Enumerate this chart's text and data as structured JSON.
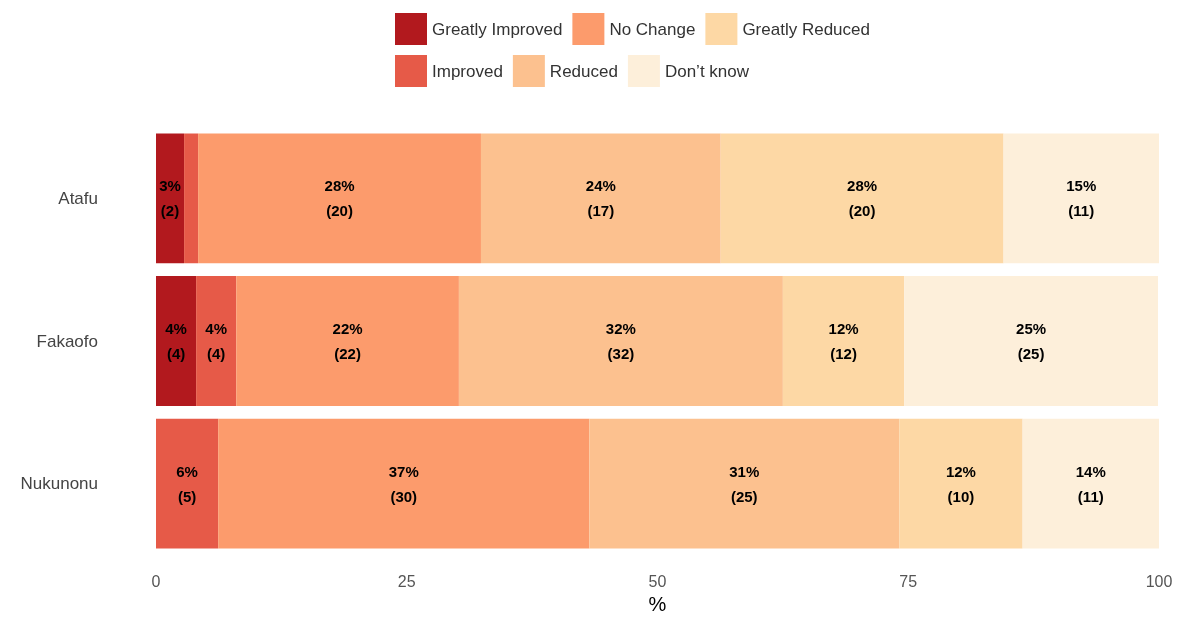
{
  "chart_data": {
    "type": "bar",
    "orientation": "horizontal",
    "stacked": true,
    "xlabel": "%",
    "categories": [
      "Atafu",
      "Fakaofo",
      "Nukunonu"
    ],
    "xlim": [
      0,
      100
    ],
    "xticks": [
      0,
      25,
      50,
      75,
      100
    ],
    "legend": "top",
    "series": [
      {
        "name": "Greatly Improved",
        "color": "#b2191e",
        "values": [
          2.8,
          4.0,
          0
        ],
        "value_labels": [
          "3%\n(2)",
          "4%\n(4)",
          null
        ]
      },
      {
        "name": "Improved",
        "color": "#e65a48",
        "values": [
          1.4,
          4.0,
          6.2
        ],
        "value_labels": [
          null,
          "4%\n(4)",
          "6%\n(5)"
        ]
      },
      {
        "name": "No Change",
        "color": "#fc9b6c",
        "values": [
          28.2,
          22.2,
          37.0
        ],
        "value_labels": [
          "28%\n(20)",
          "22%\n(22)",
          "37%\n(30)"
        ]
      },
      {
        "name": "Reduced",
        "color": "#fcc18f",
        "values": [
          23.9,
          32.3,
          30.9
        ],
        "value_labels": [
          "24%\n(17)",
          "32%\n(32)",
          "31%\n(25)"
        ]
      },
      {
        "name": "Greatly Reduced",
        "color": "#fdd8a5",
        "values": [
          28.2,
          12.1,
          12.3
        ],
        "value_labels": [
          "28%\n(20)",
          "12%\n(12)",
          "12%\n(10)"
        ]
      },
      {
        "name": "Don’t know",
        "color": "#fdefda",
        "values": [
          15.5,
          25.3,
          13.6
        ],
        "value_labels": [
          "15%\n(11)",
          "25%\n(25)",
          "14%\n(11)"
        ]
      }
    ]
  }
}
